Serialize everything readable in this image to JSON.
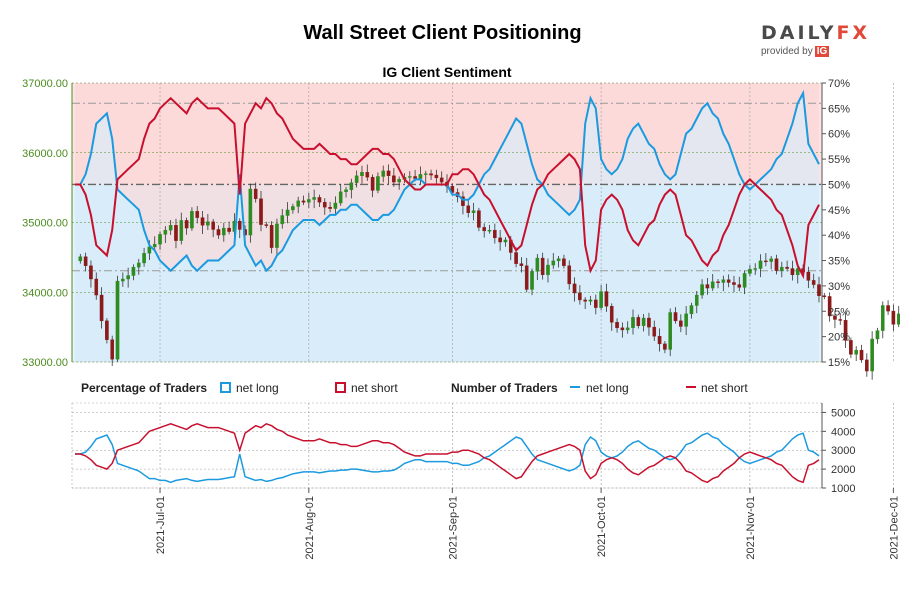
{
  "page": {
    "title": "Wall Street Client Positioning",
    "subtitle": "IG Client Sentiment",
    "brand": {
      "name_a": "DAILY",
      "name_b": "FX",
      "provided_by": "provided by",
      "provider": "IG"
    }
  },
  "chart_data": [
    {
      "type": "candlestick",
      "title": "IG Client Sentiment",
      "y_left_ticks": [
        "33000.00",
        "34000.00",
        "35000.00",
        "36000.00",
        "37000.00"
      ],
      "y_left_range": [
        33000,
        37000
      ],
      "y_right_ticks": [
        "15%",
        "20%",
        "25%",
        "30%",
        "35%",
        "40%",
        "45%",
        "50%",
        "55%",
        "60%",
        "65%",
        "70%"
      ],
      "y_right_range": [
        15,
        70
      ],
      "reference_lines_percent": [
        33,
        50,
        66
      ],
      "grid": true,
      "price_start": 34450,
      "price_steps": [
        60,
        -130,
        -190,
        -230,
        -370,
        -270,
        -280,
        1120,
        30,
        50,
        120,
        60,
        140,
        90,
        40,
        140,
        60,
        70,
        -220,
        290,
        -110,
        240,
        -90,
        -110,
        50,
        -110,
        -80,
        100,
        -50,
        150,
        -120,
        -80,
        660,
        -140,
        -370,
        -10,
        -320,
        340,
        120,
        80,
        50,
        80,
        -20,
        40,
        30,
        -70,
        -70,
        -20,
        80,
        160,
        30,
        100,
        100,
        50,
        -70,
        -190,
        200,
        80,
        -70,
        -90,
        40,
        30,
        10,
        -30,
        60,
        10,
        -20,
        -40,
        -60,
        -60,
        -90,
        -60,
        -130,
        -100,
        30,
        -240,
        -50,
        10,
        -110,
        -60,
        30,
        -180,
        -160,
        -30,
        -340,
        260,
        190,
        -240,
        140,
        60,
        30,
        -100,
        -260,
        -130,
        -100,
        -20,
        20,
        -110,
        230,
        -210,
        -230,
        -80,
        -30,
        30,
        150,
        -120,
        110,
        -130,
        -130,
        -110,
        -80,
        530,
        -120,
        -80,
        180,
        120,
        150,
        150,
        -50,
        90,
        -10,
        40,
        -40,
        -30,
        -40,
        200,
        60,
        10,
        110,
        -10,
        40,
        -170,
        50,
        -20,
        -90,
        90,
        -50,
        -120,
        -60,
        -160,
        -10,
        -280,
        -50,
        -10,
        -290,
        -200,
        60,
        -140,
        -160,
        460,
        120,
        360,
        -80,
        -190,
        150
      ],
      "net_long_percent": [
        50,
        50,
        52,
        56,
        62,
        63,
        64,
        59,
        49,
        48,
        47,
        46,
        45,
        41,
        38,
        37,
        35,
        34,
        33,
        34,
        35,
        36,
        34,
        33,
        34,
        35,
        35,
        35,
        36,
        37,
        38,
        52,
        38,
        36,
        34,
        35,
        33,
        34,
        36,
        37,
        39,
        41,
        42,
        43,
        43,
        43,
        42,
        43,
        44,
        44,
        45,
        45,
        46,
        46,
        45,
        44,
        43,
        43,
        44,
        44,
        45,
        47,
        49,
        50,
        51,
        51,
        50,
        50,
        50,
        50,
        50,
        48,
        48,
        47,
        47,
        48,
        50,
        52,
        53,
        55,
        57,
        59,
        61,
        63,
        62,
        58,
        54,
        51,
        50,
        48,
        47,
        46,
        45,
        44,
        45,
        47,
        62,
        67,
        65,
        55,
        53,
        52,
        53,
        55,
        59,
        61,
        62,
        60,
        58,
        57,
        54,
        52,
        51,
        52,
        56,
        60,
        61,
        63,
        65,
        66,
        64,
        63,
        60,
        58,
        55,
        52,
        50,
        49,
        50,
        51,
        52,
        53,
        55,
        56,
        59,
        62,
        66,
        68,
        58,
        56,
        54
      ],
      "net_short_percent": [
        50,
        50,
        48,
        44,
        38,
        37,
        36,
        41,
        51,
        52,
        53,
        54,
        55,
        59,
        62,
        63,
        65,
        66,
        67,
        66,
        65,
        64,
        66,
        67,
        66,
        65,
        65,
        65,
        64,
        63,
        62,
        48,
        62,
        64,
        66,
        65,
        67,
        66,
        64,
        63,
        61,
        59,
        58,
        57,
        57,
        57,
        58,
        57,
        56,
        56,
        55,
        55,
        54,
        54,
        55,
        56,
        57,
        57,
        56,
        56,
        55,
        53,
        51,
        50,
        49,
        49,
        50,
        50,
        50,
        50,
        50,
        52,
        52,
        53,
        53,
        52,
        50,
        48,
        47,
        45,
        43,
        41,
        39,
        37,
        38,
        42,
        46,
        49,
        50,
        52,
        53,
        54,
        55,
        56,
        55,
        53,
        38,
        33,
        35,
        45,
        47,
        48,
        47,
        45,
        41,
        39,
        38,
        40,
        42,
        43,
        46,
        48,
        49,
        48,
        44,
        40,
        39,
        37,
        35,
        34,
        36,
        37,
        40,
        42,
        45,
        48,
        50,
        51,
        50,
        49,
        48,
        47,
        45,
        44,
        41,
        38,
        34,
        32,
        42,
        44,
        46
      ]
    },
    {
      "type": "line",
      "legend_left_title": "Percentage of Traders",
      "legend_right_title": "Number of Traders",
      "legend_items": {
        "net_long_pct": "net long",
        "net_short_pct": "net short",
        "net_long_num": "net long",
        "net_short_num": "net short"
      },
      "y_ticks": [
        "1000",
        "2000",
        "3000",
        "4000",
        "5000"
      ],
      "y_range": [
        1000,
        5500
      ],
      "x_labels": [
        "2021-Jul-01",
        "2021-Aug-01",
        "2021-Sep-01",
        "2021-Oct-01",
        "2021-Nov-01",
        "2021-Dec-01"
      ],
      "x_label_positions": [
        16,
        44,
        71,
        99,
        127,
        154
      ],
      "net_long_count": [
        2800,
        2800,
        2900,
        3200,
        3600,
        3700,
        3800,
        3300,
        2300,
        2200,
        2100,
        2000,
        1900,
        1700,
        1500,
        1500,
        1400,
        1400,
        1300,
        1400,
        1450,
        1500,
        1400,
        1350,
        1400,
        1450,
        1450,
        1450,
        1500,
        1550,
        1600,
        2800,
        1600,
        1500,
        1400,
        1450,
        1350,
        1400,
        1500,
        1550,
        1650,
        1750,
        1800,
        1850,
        1850,
        1850,
        1800,
        1850,
        1900,
        1900,
        1950,
        1950,
        2000,
        2000,
        1950,
        1900,
        1850,
        1850,
        1900,
        1900,
        1950,
        2100,
        2300,
        2400,
        2500,
        2500,
        2400,
        2400,
        2400,
        2400,
        2400,
        2300,
        2300,
        2200,
        2200,
        2300,
        2400,
        2600,
        2700,
        2900,
        3100,
        3300,
        3500,
        3700,
        3600,
        3200,
        2800,
        2500,
        2400,
        2300,
        2200,
        2100,
        2000,
        1900,
        2000,
        2200,
        3300,
        3700,
        3500,
        2900,
        2700,
        2600,
        2700,
        2900,
        3200,
        3400,
        3500,
        3300,
        3100,
        3000,
        2800,
        2600,
        2500,
        2600,
        2900,
        3300,
        3400,
        3600,
        3800,
        3900,
        3700,
        3600,
        3300,
        3100,
        2900,
        2600,
        2400,
        2300,
        2400,
        2500,
        2600,
        2700,
        2900,
        3000,
        3300,
        3600,
        3800,
        3900,
        3000,
        2900,
        2700
      ],
      "net_short_count": [
        2800,
        2800,
        2700,
        2500,
        2200,
        2100,
        2000,
        2300,
        3000,
        3100,
        3200,
        3300,
        3400,
        3700,
        4000,
        4100,
        4200,
        4300,
        4400,
        4300,
        4200,
        4100,
        4300,
        4400,
        4300,
        4200,
        4200,
        4200,
        4100,
        4000,
        3900,
        3000,
        3900,
        4100,
        4300,
        4200,
        4400,
        4300,
        4100,
        4000,
        3800,
        3700,
        3600,
        3500,
        3500,
        3500,
        3600,
        3500,
        3400,
        3400,
        3300,
        3300,
        3200,
        3200,
        3300,
        3400,
        3500,
        3500,
        3400,
        3400,
        3300,
        3100,
        2900,
        2800,
        2700,
        2700,
        2800,
        2800,
        2800,
        2800,
        2800,
        2900,
        2900,
        3000,
        3000,
        2900,
        2800,
        2600,
        2500,
        2300,
        2100,
        1900,
        1700,
        1500,
        1600,
        2000,
        2400,
        2700,
        2800,
        2900,
        3000,
        3100,
        3200,
        3300,
        3200,
        3000,
        1900,
        1500,
        1700,
        2300,
        2500,
        2600,
        2500,
        2300,
        2000,
        1800,
        1700,
        1900,
        2100,
        2200,
        2400,
        2600,
        2700,
        2600,
        2300,
        1900,
        1800,
        1600,
        1400,
        1300,
        1500,
        1600,
        1900,
        2100,
        2300,
        2600,
        2800,
        2900,
        2800,
        2700,
        2600,
        2500,
        2300,
        2200,
        1900,
        1600,
        1400,
        1300,
        2200,
        2300,
        2500
      ]
    }
  ],
  "colors": {
    "net_long": "#1b9ae0",
    "net_short": "#c8102e",
    "bg_upper": "#fde4e4",
    "bg_lower": "#e3f2fb",
    "candle_up": "#2e8b22",
    "candle_down": "#8b1a1a",
    "axis_green": "#4c8c1f",
    "grid": "#9c9c9c",
    "text": "#333333",
    "brand_accent": "#e0483a"
  }
}
